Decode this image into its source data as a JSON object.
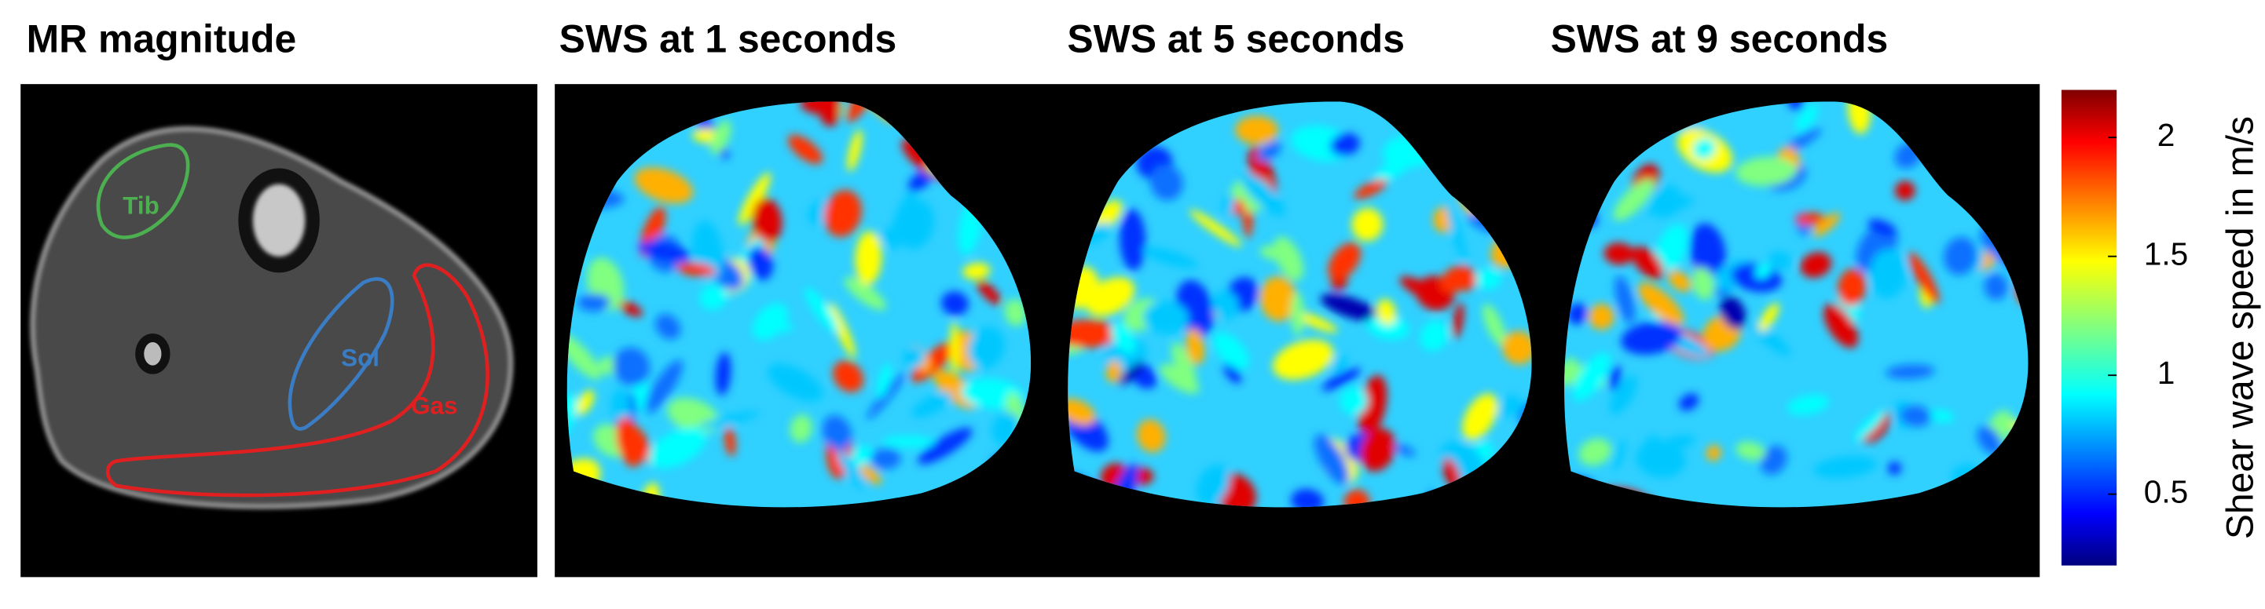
{
  "panels": [
    {
      "title": "MR magnitude",
      "regions": [
        "Tib",
        "Sol",
        "Gas"
      ]
    },
    {
      "title": "SWS at 1 seconds"
    },
    {
      "title": "SWS at 5 seconds"
    },
    {
      "title": "SWS at 9 seconds"
    }
  ],
  "colorbar": {
    "label": "Shear wave speed in m/s",
    "lim": [
      0.2,
      2.2
    ],
    "ticks": [
      0.5,
      1,
      1.5,
      2
    ]
  }
}
